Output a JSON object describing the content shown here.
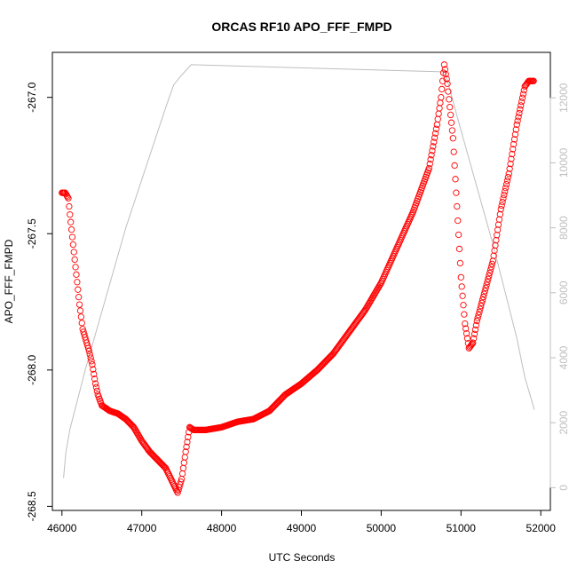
{
  "chart_data": {
    "type": "scatter",
    "title": "ORCAS RF10 APO_FFF_FMPD",
    "xlabel": "UTC Seconds",
    "ylabel": "APO_FFF_FMPD",
    "xlim": [
      45880,
      52120
    ],
    "ylim": [
      -268.515,
      -266.835
    ],
    "y2lim": [
      -700,
      13400
    ],
    "x_ticks": [
      46000,
      47000,
      48000,
      49000,
      50000,
      51000,
      52000
    ],
    "y_ticks": [
      -267.0,
      -267.5,
      -268.0,
      -268.5
    ],
    "y_tick_labels": [
      "-267.0",
      "-267.5",
      "-268.0",
      "-268.5"
    ],
    "y2_ticks": [
      0,
      2000,
      4000,
      6000,
      8000,
      10000,
      12000
    ],
    "grid": false,
    "series": [
      {
        "axis": "left",
        "style": "open-circle markers",
        "color": "#ff0000",
        "points": [
          [
            46000,
            -267.35
          ],
          [
            46040,
            -267.35
          ],
          [
            46080,
            -267.37
          ],
          [
            46100,
            -267.43
          ],
          [
            46140,
            -267.54
          ],
          [
            46180,
            -267.65
          ],
          [
            46220,
            -267.76
          ],
          [
            46260,
            -267.85
          ],
          [
            46300,
            -267.89
          ],
          [
            46340,
            -267.93
          ],
          [
            46380,
            -267.98
          ],
          [
            46420,
            -268.05
          ],
          [
            46450,
            -268.09
          ],
          [
            46500,
            -268.13
          ],
          [
            46550,
            -268.14
          ],
          [
            46600,
            -268.15
          ],
          [
            46700,
            -268.16
          ],
          [
            46800,
            -268.18
          ],
          [
            46900,
            -268.21
          ],
          [
            47000,
            -268.26
          ],
          [
            47100,
            -268.3
          ],
          [
            47200,
            -268.33
          ],
          [
            47300,
            -268.36
          ],
          [
            47400,
            -268.42
          ],
          [
            47450,
            -268.45
          ],
          [
            47500,
            -268.4
          ],
          [
            47550,
            -268.3
          ],
          [
            47600,
            -268.21
          ],
          [
            47650,
            -268.22
          ],
          [
            47800,
            -268.22
          ],
          [
            48000,
            -268.21
          ],
          [
            48200,
            -268.19
          ],
          [
            48400,
            -268.18
          ],
          [
            48600,
            -268.15
          ],
          [
            48800,
            -268.09
          ],
          [
            49000,
            -268.05
          ],
          [
            49200,
            -268.0
          ],
          [
            49400,
            -267.94
          ],
          [
            49600,
            -267.86
          ],
          [
            49800,
            -267.78
          ],
          [
            50000,
            -267.68
          ],
          [
            50200,
            -267.55
          ],
          [
            50400,
            -267.42
          ],
          [
            50600,
            -267.26
          ],
          [
            50700,
            -267.1
          ],
          [
            50750,
            -267.0
          ],
          [
            50790,
            -266.88
          ],
          [
            50830,
            -266.95
          ],
          [
            50900,
            -267.15
          ],
          [
            50950,
            -267.4
          ],
          [
            51000,
            -267.66
          ],
          [
            51050,
            -267.83
          ],
          [
            51100,
            -267.92
          ],
          [
            51150,
            -267.9
          ],
          [
            51200,
            -267.82
          ],
          [
            51300,
            -267.71
          ],
          [
            51400,
            -267.6
          ],
          [
            51500,
            -267.41
          ],
          [
            51600,
            -267.28
          ],
          [
            51700,
            -267.1
          ],
          [
            51800,
            -266.96
          ],
          [
            51850,
            -266.94
          ],
          [
            51910,
            -266.94
          ]
        ]
      },
      {
        "axis": "right",
        "style": "line",
        "color": "#bebebe",
        "points": [
          [
            46020,
            300
          ],
          [
            46050,
            1100
          ],
          [
            46100,
            1800
          ],
          [
            46300,
            3700
          ],
          [
            46800,
            8000
          ],
          [
            47300,
            11700
          ],
          [
            47400,
            12400
          ],
          [
            47500,
            12700
          ],
          [
            47620,
            13020
          ],
          [
            50800,
            12800
          ],
          [
            51000,
            11000
          ],
          [
            51400,
            7500
          ],
          [
            51700,
            4600
          ],
          [
            51800,
            3400
          ],
          [
            51920,
            2400
          ]
        ]
      }
    ]
  }
}
